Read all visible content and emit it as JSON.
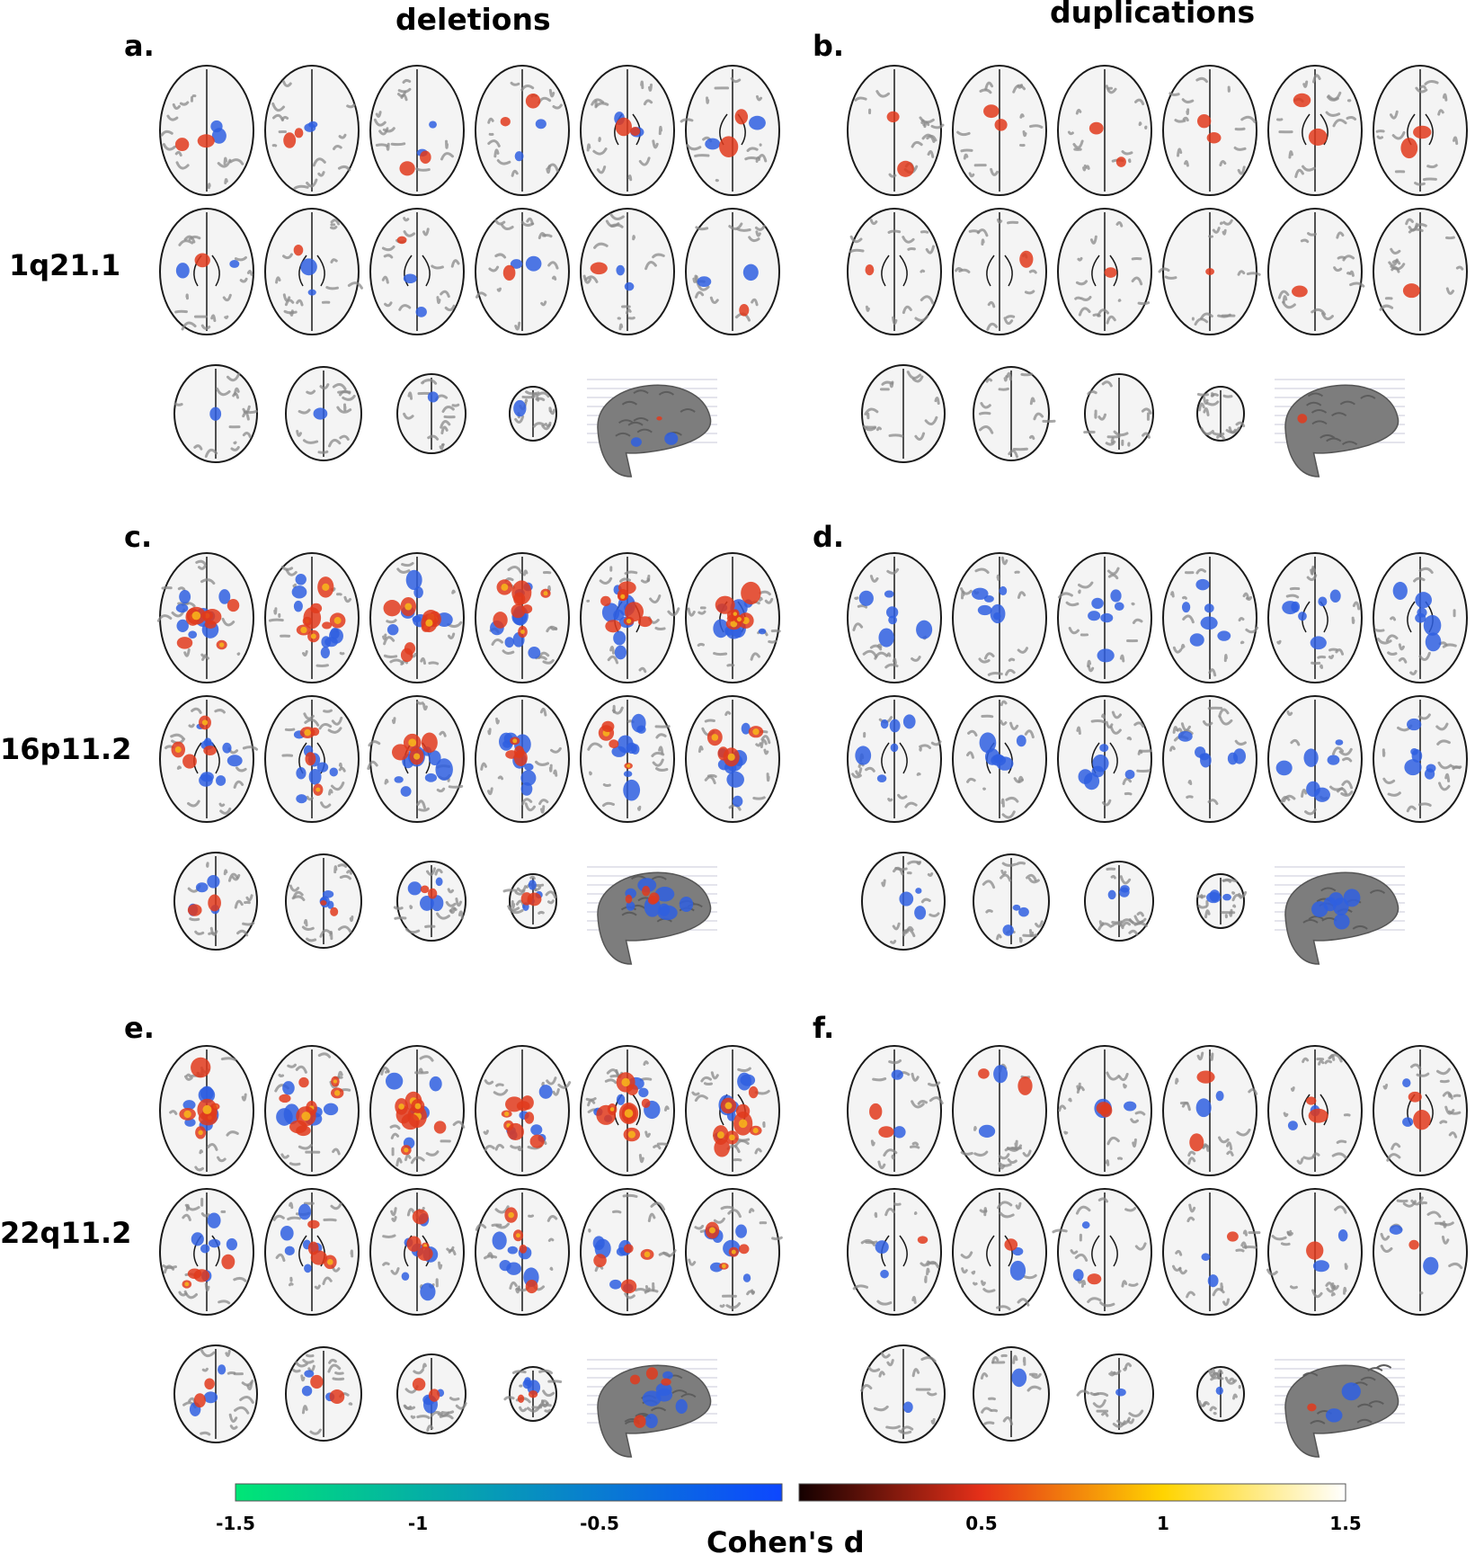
{
  "column_titles": [
    "deletions",
    "duplications"
  ],
  "panels": [
    {
      "label": "a.",
      "locus": "1q21.1",
      "type": "deletions"
    },
    {
      "label": "b.",
      "locus": "1q21.1",
      "type": "duplications"
    },
    {
      "label": "c.",
      "locus": "16p11.2",
      "type": "deletions"
    },
    {
      "label": "d.",
      "locus": "16p11.2",
      "type": "duplications"
    },
    {
      "label": "e.",
      "locus": "22q11.2",
      "type": "deletions"
    },
    {
      "label": "f.",
      "locus": "22q11.2",
      "type": "duplications"
    }
  ],
  "row_labels": [
    "1q21.1",
    "16p11.2",
    "22q11.2"
  ],
  "colorbar": {
    "title": "Cohen's d",
    "negative_range": [
      -1.5,
      0
    ],
    "positive_range": [
      0,
      1.5
    ],
    "tick_labels": [
      "-1.5",
      "-1",
      "-0.5",
      "0.5",
      "1",
      "1.5"
    ],
    "negative_colors": [
      "#00e676",
      "#0d47ff"
    ],
    "positive_colors": [
      "#140000",
      "#e53019",
      "#ffd400",
      "#ffffff"
    ]
  },
  "colors": {
    "brain_outline": "#1a1a1a",
    "brain_fill": "#f4f4f4",
    "gyri": "#8a8a8a",
    "render_3d": "#7d7d7d",
    "effect_negative": "#2f5fe0",
    "effect_positive": "#e03a1c",
    "effect_peak": "#f6b21c"
  },
  "slice_grid": {
    "rows_per_panel": [
      6,
      6,
      4
    ],
    "has_3d_render": true
  }
}
